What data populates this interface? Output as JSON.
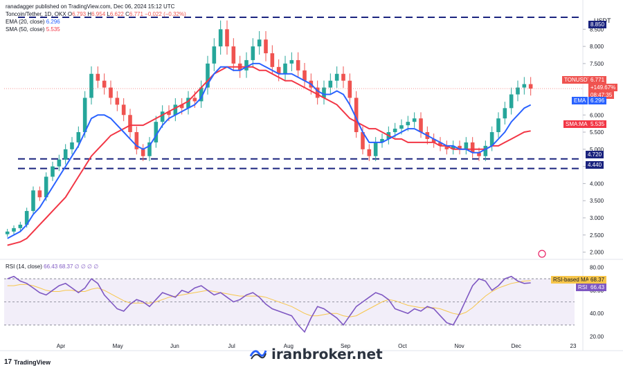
{
  "header": {
    "publisher_line": "ranadagger published on TradingView.com, Dec 06, 2024 15:12 UTC",
    "symbol_line": "Toncoin/Tether, 1D, OKX",
    "ohlc": {
      "o_label": "O",
      "o": "6.793",
      "h_label": "H",
      "h": "6.954",
      "l_label": "L",
      "l": "6.622",
      "c_label": "C",
      "c": "6.771",
      "chg": "−0.022 (−0.32%)"
    },
    "ema_line": "EMA (20, close)",
    "ema_val": "6.296",
    "sma_line": "SMA (50, close)",
    "sma_val": "5.535",
    "rsi_line": "RSI (14, close)",
    "rsi_vals": "66.43  68.37  ∅  ∅  ∅  ∅"
  },
  "currency_label": "USDT",
  "price_tags": {
    "symbol": "TONUSDT",
    "price": "6.771",
    "pct": "+149.67%",
    "countdown": "08:47:35",
    "ema_label": "EMA",
    "ema": "6.296",
    "sma_label": "SMA:MA",
    "sma": "5.535",
    "res_upper": "8.850",
    "sup_1": "4.720",
    "sup_2": "4.440"
  },
  "rsi_tags": {
    "ma_label": "RSI-based MA",
    "ma": "68.37",
    "rsi_label": "RSI",
    "rsi": "66.43"
  },
  "colors": {
    "up": "#26a69a",
    "down": "#ef5350",
    "ema": "#2962ff",
    "sma": "#f23645",
    "rsi": "#7e57c2",
    "rsi_ma": "#f7c64b",
    "level": "#1a237e"
  },
  "footer": {
    "tv_brand": "TradingView",
    "watermark": "iranbroker.net"
  },
  "chart_data": {
    "type": "candlestick",
    "price_axis": {
      "ticks": [
        2.0,
        2.5,
        3.0,
        3.5,
        4.0,
        4.5,
        5.0,
        5.5,
        6.0,
        6.5,
        7.0,
        7.5,
        8.0,
        8.5
      ],
      "labels": [
        "2.000",
        "2.500",
        "3.000",
        "3.500",
        "4.000",
        "4.500",
        "5.000",
        "5.500",
        "6.000",
        "6.500",
        "7.000",
        "7.500",
        "8.000",
        "8.500"
      ],
      "range": [
        1.85,
        8.95
      ]
    },
    "rsi_axis": {
      "ticks": [
        20,
        40,
        60,
        80
      ],
      "labels": [
        "20.00",
        "40.00",
        "60.00",
        "80.00"
      ],
      "range": [
        15,
        85
      ],
      "band": [
        30,
        70
      ]
    },
    "time_axis": {
      "labels": [
        "Apr",
        "May",
        "Jun",
        "Jul",
        "Aug",
        "Sep",
        "Oct",
        "Nov",
        "Dec",
        "23"
      ]
    },
    "levels": [
      8.85,
      4.72,
      4.44
    ],
    "close_series": [
      2.6,
      2.7,
      2.8,
      3.2,
      3.8,
      3.6,
      4.2,
      4.5,
      4.7,
      5.0,
      5.2,
      5.5,
      6.5,
      7.2,
      7.0,
      6.8,
      6.5,
      6.3,
      6.0,
      5.5,
      5.0,
      4.8,
      5.2,
      5.8,
      6.1,
      6.0,
      6.3,
      6.2,
      6.5,
      6.4,
      6.8,
      7.5,
      8.0,
      8.5,
      8.0,
      7.5,
      7.3,
      7.6,
      8.0,
      8.2,
      7.8,
      7.4,
      7.2,
      7.5,
      7.6,
      7.3,
      7.0,
      6.8,
      6.5,
      6.8,
      7.0,
      7.2,
      7.0,
      6.5,
      5.5,
      5.0,
      4.8,
      5.2,
      5.3,
      5.5,
      5.6,
      5.7,
      5.8,
      5.9,
      5.5,
      5.3,
      5.2,
      5.1,
      5.0,
      5.1,
      5.0,
      5.2,
      4.9,
      4.8,
      5.1,
      5.5,
      5.9,
      6.2,
      6.6,
      6.8,
      6.9,
      6.77
    ],
    "ema20_series": [
      2.4,
      2.5,
      2.6,
      2.8,
      3.1,
      3.3,
      3.6,
      3.9,
      4.2,
      4.5,
      4.8,
      5.1,
      5.5,
      5.9,
      6.0,
      6.0,
      5.9,
      5.7,
      5.5,
      5.3,
      5.1,
      5.0,
      5.1,
      5.4,
      5.7,
      5.9,
      6.0,
      6.1,
      6.2,
      6.3,
      6.5,
      6.9,
      7.2,
      7.4,
      7.4,
      7.3,
      7.3,
      7.4,
      7.5,
      7.5,
      7.4,
      7.3,
      7.2,
      7.2,
      7.2,
      7.1,
      7.0,
      6.9,
      6.7,
      6.6,
      6.6,
      6.7,
      6.6,
      6.3,
      5.9,
      5.5,
      5.2,
      5.2,
      5.2,
      5.3,
      5.4,
      5.5,
      5.6,
      5.6,
      5.5,
      5.4,
      5.3,
      5.2,
      5.1,
      5.1,
      5.0,
      5.0,
      4.9,
      4.9,
      5.0,
      5.1,
      5.3,
      5.5,
      5.8,
      6.0,
      6.2,
      6.296
    ],
    "sma50_series": [
      2.2,
      2.25,
      2.3,
      2.4,
      2.6,
      2.8,
      3.0,
      3.2,
      3.4,
      3.6,
      3.9,
      4.2,
      4.5,
      4.8,
      5.0,
      5.2,
      5.4,
      5.5,
      5.6,
      5.7,
      5.7,
      5.7,
      5.8,
      5.9,
      6.0,
      6.1,
      6.2,
      6.3,
      6.4,
      6.6,
      6.8,
      7.0,
      7.2,
      7.3,
      7.4,
      7.4,
      7.4,
      7.4,
      7.4,
      7.3,
      7.3,
      7.2,
      7.1,
      7.0,
      7.0,
      6.9,
      6.8,
      6.7,
      6.6,
      6.5,
      6.4,
      6.3,
      6.1,
      5.9,
      5.8,
      5.7,
      5.6,
      5.6,
      5.5,
      5.4,
      5.3,
      5.3,
      5.2,
      5.2,
      5.2,
      5.2,
      5.2,
      5.1,
      5.1,
      5.0,
      5.0,
      5.0,
      5.0,
      5.0,
      5.0,
      5.1,
      5.1,
      5.2,
      5.3,
      5.4,
      5.5,
      5.535
    ],
    "rsi_series": [
      70,
      72,
      68,
      66,
      62,
      58,
      56,
      60,
      64,
      66,
      62,
      58,
      62,
      70,
      66,
      56,
      50,
      44,
      42,
      48,
      52,
      50,
      46,
      52,
      58,
      56,
      54,
      60,
      58,
      62,
      64,
      60,
      56,
      58,
      54,
      50,
      52,
      56,
      58,
      54,
      48,
      44,
      42,
      40,
      38,
      30,
      24,
      36,
      46,
      44,
      40,
      36,
      30,
      38,
      46,
      50,
      54,
      58,
      56,
      52,
      44,
      42,
      40,
      44,
      42,
      46,
      44,
      38,
      32,
      30,
      40,
      52,
      64,
      70,
      68,
      60,
      64,
      70,
      72,
      68,
      66,
      66.43
    ],
    "rsi_ma_series": [
      64,
      64,
      65,
      65,
      64,
      62,
      60,
      59,
      59,
      60,
      60,
      59,
      59,
      61,
      62,
      60,
      57,
      54,
      51,
      49,
      49,
      49,
      49,
      50,
      52,
      54,
      55,
      56,
      57,
      58,
      59,
      60,
      59,
      58,
      57,
      56,
      55,
      55,
      55,
      55,
      54,
      52,
      50,
      48,
      46,
      43,
      40,
      38,
      38,
      39,
      40,
      40,
      38,
      37,
      38,
      41,
      44,
      47,
      50,
      52,
      51,
      49,
      47,
      46,
      45,
      45,
      45,
      44,
      42,
      40,
      39,
      41,
      45,
      50,
      55,
      59,
      62,
      64,
      66,
      67,
      68,
      68.37
    ]
  }
}
